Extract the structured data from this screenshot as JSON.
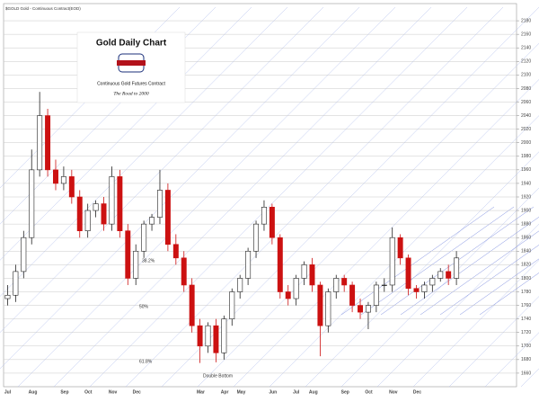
{
  "chart_data": {
    "type": "candlestick",
    "header": "$GOLD Gold - Continuous Contract(EOD)",
    "title": "Gold Daily Chart",
    "subtitle": "Continuous Gold Futures Contract",
    "tagline": "The Road to 2000",
    "annotations": [
      "38.2%",
      "50%",
      "61.8%",
      "Double Bottom"
    ],
    "categories": [
      "Jul",
      null,
      null,
      "Aug",
      null,
      null,
      null,
      "Sep",
      null,
      null,
      "Oct",
      null,
      null,
      "Nov",
      null,
      null,
      "Dec",
      null,
      null,
      null,
      null,
      null,
      null,
      null,
      "Mar",
      null,
      null,
      "Apr",
      null,
      "May",
      null,
      null,
      null,
      "Jun",
      null,
      null,
      "Jul",
      null,
      "Aug",
      null,
      null,
      null,
      "Sep",
      null,
      null,
      "Oct",
      null,
      null,
      "Nov",
      null,
      null,
      "Dec",
      null,
      null,
      null,
      null,
      null
    ],
    "open": [
      1770,
      1775,
      1810,
      1860,
      1960,
      2040,
      1960,
      1940,
      1950,
      1920,
      1870,
      1900,
      1910,
      1880,
      1950,
      1870,
      1800,
      1840,
      1880,
      1890,
      1930,
      1850,
      1830,
      1790,
      1730,
      1700,
      1730,
      1690,
      1740,
      1780,
      1800,
      1840,
      1880,
      1905,
      1860,
      1780,
      1770,
      1800,
      1820,
      1790,
      1730,
      1780,
      1800,
      1790,
      1760,
      1750,
      1760,
      1790,
      1790,
      1860,
      1830,
      1785,
      1780,
      1790,
      1800,
      1810,
      1800
    ],
    "high": [
      1790,
      1820,
      1870,
      1990,
      2075,
      2050,
      1975,
      1965,
      1960,
      1930,
      1910,
      1915,
      1920,
      1965,
      1960,
      1880,
      1850,
      1885,
      1895,
      1960,
      1940,
      1865,
      1840,
      1800,
      1740,
      1735,
      1740,
      1745,
      1785,
      1805,
      1845,
      1885,
      1915,
      1910,
      1865,
      1790,
      1805,
      1825,
      1830,
      1795,
      1785,
      1805,
      1805,
      1795,
      1770,
      1765,
      1795,
      1800,
      1875,
      1865,
      1835,
      1790,
      1795,
      1805,
      1815,
      1820,
      1840
    ],
    "low": [
      1760,
      1765,
      1800,
      1850,
      1950,
      1950,
      1930,
      1930,
      1910,
      1860,
      1860,
      1890,
      1870,
      1870,
      1860,
      1790,
      1790,
      1830,
      1870,
      1880,
      1840,
      1820,
      1780,
      1720,
      1675,
      1690,
      1676,
      1680,
      1730,
      1770,
      1790,
      1830,
      1870,
      1850,
      1770,
      1760,
      1760,
      1790,
      1780,
      1685,
      1720,
      1770,
      1780,
      1750,
      1740,
      1725,
      1750,
      1780,
      1780,
      1820,
      1775,
      1770,
      1770,
      1780,
      1795,
      1790,
      1790
    ],
    "close": [
      1775,
      1810,
      1860,
      1960,
      2040,
      1960,
      1940,
      1950,
      1920,
      1870,
      1900,
      1910,
      1880,
      1950,
      1870,
      1800,
      1840,
      1880,
      1890,
      1930,
      1850,
      1830,
      1790,
      1730,
      1700,
      1730,
      1690,
      1740,
      1780,
      1800,
      1840,
      1880,
      1905,
      1860,
      1780,
      1770,
      1800,
      1820,
      1790,
      1730,
      1780,
      1800,
      1790,
      1760,
      1750,
      1760,
      1790,
      1790,
      1860,
      1830,
      1785,
      1780,
      1790,
      1800,
      1810,
      1800,
      1830
    ],
    "up_color": "#222222",
    "down_color": "#cc1111",
    "ylim": [
      1640,
      2200
    ],
    "yticks": [
      1660,
      1680,
      1700,
      1720,
      1740,
      1760,
      1780,
      1800,
      1820,
      1840,
      1860,
      1880,
      1900,
      1920,
      1940,
      1960,
      1980,
      2000,
      2020,
      2040,
      2060,
      2080,
      2100,
      2120,
      2140,
      2160,
      2180
    ],
    "grid": true
  }
}
